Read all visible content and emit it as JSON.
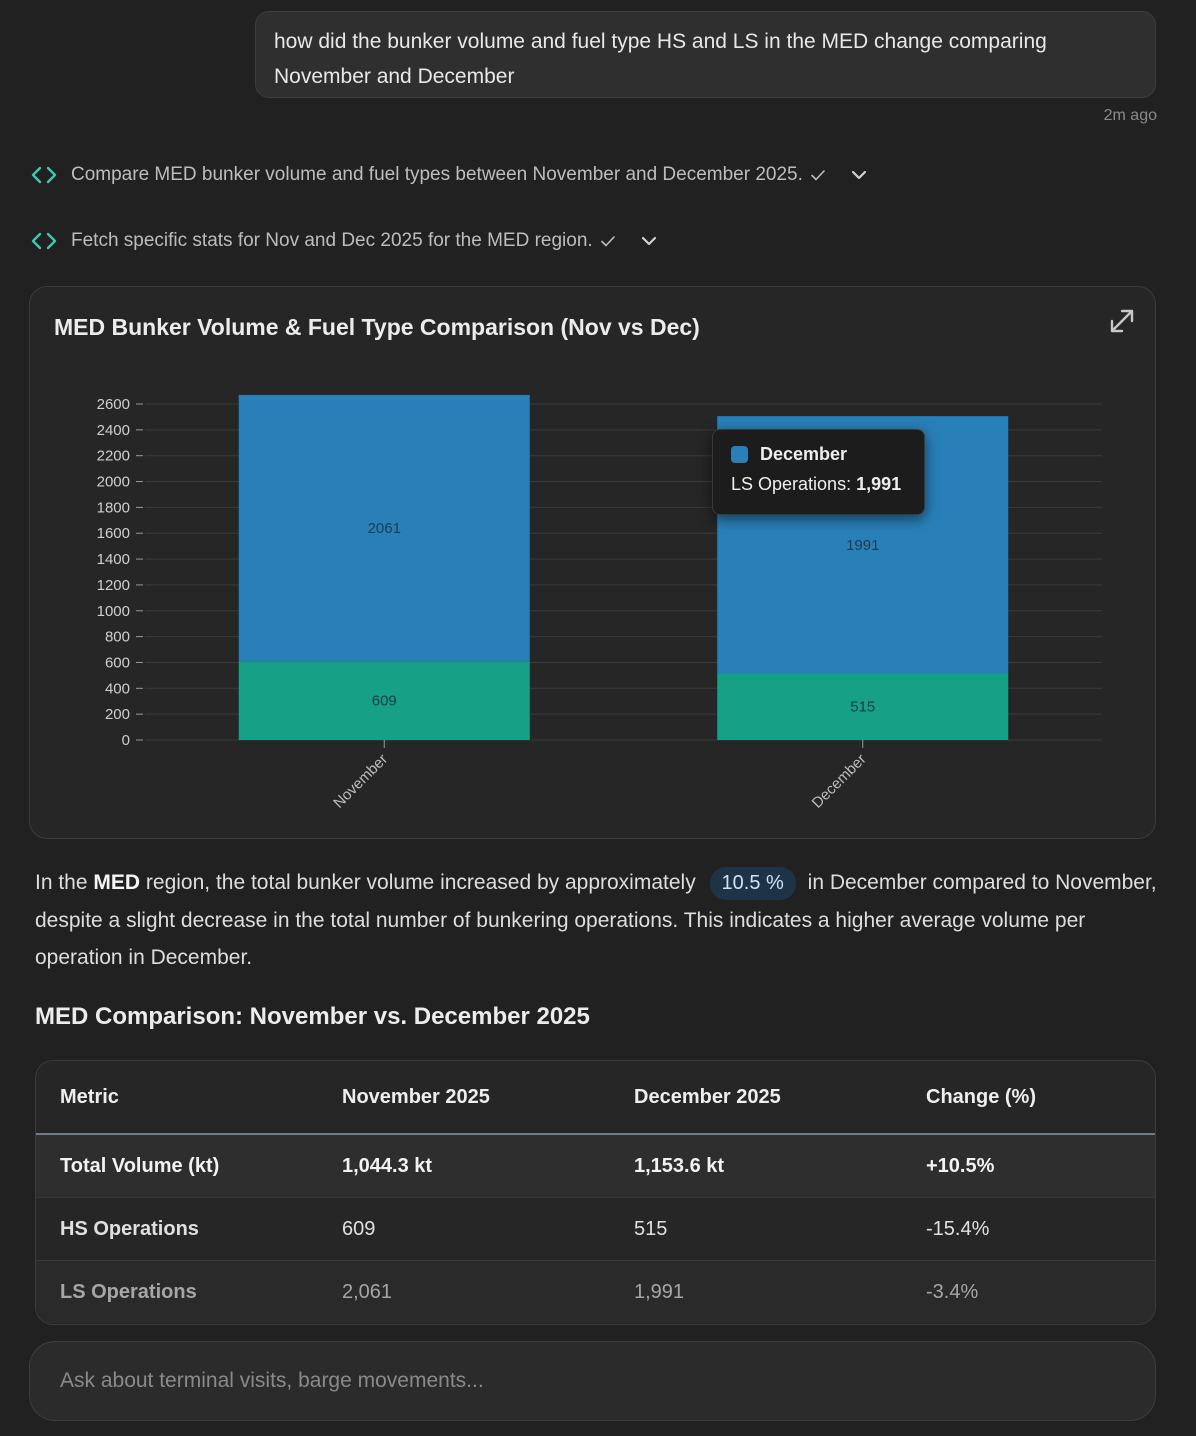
{
  "user_message": {
    "text": "how did the bunker volume and fuel type HS and LS in the MED change comparing November and December",
    "timestamp": "2m ago"
  },
  "steps": [
    {
      "label": "Compare MED bunker volume and fuel types between November and December 2025.",
      "icon": "code-icon",
      "status": "check-icon",
      "toggle": "chevron-down-icon"
    },
    {
      "label": "Fetch specific stats for Nov and Dec 2025 for the MED region.",
      "icon": "code-icon",
      "status": "check-icon",
      "toggle": "chevron-down-icon"
    }
  ],
  "chart": {
    "title": "MED Bunker Volume & Fuel Type Comparison (Nov vs Dec)",
    "tooltip": {
      "series": "December",
      "label": "LS Operations:",
      "value": "1,991"
    }
  },
  "chart_data": {
    "type": "bar",
    "stacked": true,
    "categories": [
      "November",
      "December"
    ],
    "series": [
      {
        "values": [
          609,
          515
        ],
        "color": "#16a085"
      },
      {
        "values": [
          2061,
          1991
        ],
        "color": "#2980b9"
      }
    ],
    "ylim": [
      0,
      2600
    ],
    "yticks": [
      0,
      200,
      400,
      600,
      800,
      1000,
      1200,
      1400,
      1600,
      1800,
      2000,
      2200,
      2400,
      2600
    ],
    "grid": true,
    "title": "",
    "xlabel": "",
    "ylabel": ""
  },
  "summary": {
    "part1": "In the ",
    "region": "MED",
    "part2": " region, the total bunker volume increased by approximately ",
    "pct": "10.5 %",
    "part3": " in December compared to November, despite a slight decrease in the total number of bunkering operations. This indicates a higher average volume per operation in December."
  },
  "table": {
    "title": "MED Comparison: November vs. December 2025",
    "headers": [
      "Metric",
      "November 2025",
      "December 2025",
      "Change (%)"
    ],
    "rows": [
      [
        "Total Volume (kt)",
        "1,044.3 kt",
        "1,153.6 kt",
        "+10.5%"
      ],
      [
        "HS Operations",
        "609",
        "515",
        "-15.4%"
      ],
      [
        "LS Operations",
        "2,061",
        "1,991",
        "-3.4%"
      ]
    ]
  },
  "input": {
    "placeholder": "Ask about terminal visits, barge movements..."
  },
  "colors": {
    "background": "#212121",
    "hs": "#16a085",
    "ls": "#2980b9",
    "accent": "#3ec9b4"
  }
}
